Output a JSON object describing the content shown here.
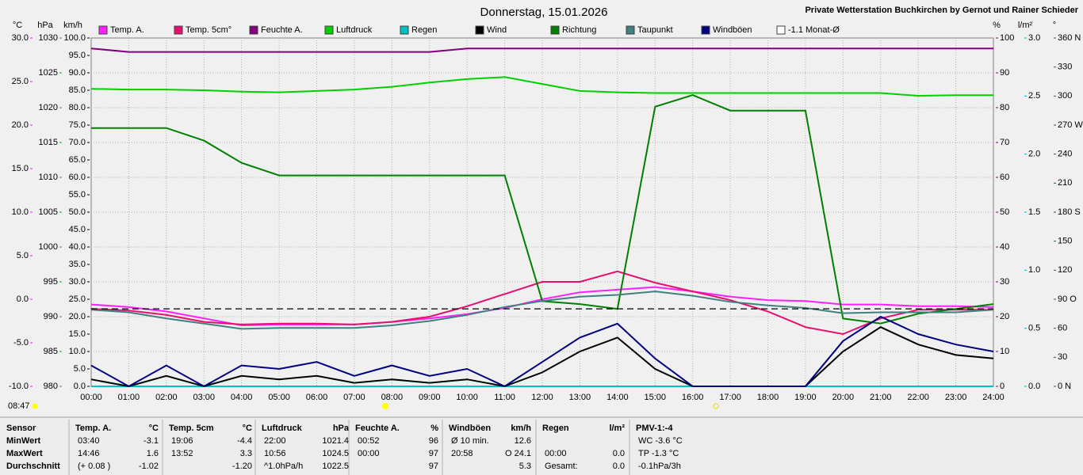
{
  "chart_data": {
    "type": "line",
    "title": "Donnerstag, 15.01.2026",
    "subtitle": "Private Wetterstation Buchkirchen by Gernot und Rainer Schieder",
    "time_label": "08:47",
    "grid": true,
    "x": [
      0,
      1,
      2,
      3,
      4,
      5,
      6,
      7,
      8,
      9,
      10,
      11,
      12,
      13,
      14,
      15,
      16,
      17,
      18,
      19,
      20,
      21,
      22,
      23,
      24
    ],
    "xlim": [
      0,
      24
    ],
    "xticks": [
      {
        "value": 0,
        "label": "00:00"
      },
      {
        "value": 1,
        "label": "01:00"
      },
      {
        "value": 2,
        "label": "02:00"
      },
      {
        "value": 3,
        "label": "03:00"
      },
      {
        "value": 4,
        "label": "04:00"
      },
      {
        "value": 5,
        "label": "05:00"
      },
      {
        "value": 6,
        "label": "06:00"
      },
      {
        "value": 7,
        "label": "07:00"
      },
      {
        "value": 8,
        "label": "08:00"
      },
      {
        "value": 9,
        "label": "09:00"
      },
      {
        "value": 10,
        "label": "10:00"
      },
      {
        "value": 11,
        "label": "11:00"
      },
      {
        "value": 12,
        "label": "12:00"
      },
      {
        "value": 13,
        "label": "13:00"
      },
      {
        "value": 14,
        "label": "14:00"
      },
      {
        "value": 15,
        "label": "15:00"
      },
      {
        "value": 16,
        "label": "16:00"
      },
      {
        "value": 17,
        "label": "17:00"
      },
      {
        "value": 18,
        "label": "18:00"
      },
      {
        "value": 19,
        "label": "19:00"
      },
      {
        "value": 20,
        "label": "20:00"
      },
      {
        "value": 21,
        "label": "21:00"
      },
      {
        "value": 22,
        "label": "22:00"
      },
      {
        "value": 23,
        "label": "23:00"
      },
      {
        "value": 24,
        "label": "24:00"
      }
    ],
    "axes": [
      {
        "unit": "°C",
        "color": "#e020e0",
        "lim": [
          -10,
          30
        ],
        "ticks": [
          {
            "value": -10,
            "label": "-10.0"
          },
          {
            "value": -5,
            "label": "-5.0"
          },
          {
            "value": 0,
            "label": "0.0"
          },
          {
            "value": 5,
            "label": "5.0"
          },
          {
            "value": 10,
            "label": "10.0"
          },
          {
            "value": 15,
            "label": "15.0"
          },
          {
            "value": 20,
            "label": "20.0"
          },
          {
            "value": 25,
            "label": "25.0"
          },
          {
            "value": 30,
            "label": "30.0"
          }
        ]
      },
      {
        "unit": "hPa",
        "color": "#00b000",
        "lim": [
          980,
          1030
        ],
        "ticks": [
          980,
          985,
          990,
          995,
          1000,
          1005,
          1010,
          1015,
          1020,
          1025,
          1030
        ]
      },
      {
        "unit": "km/h",
        "color": "#000000",
        "lim": [
          0,
          100
        ],
        "ticks": [
          {
            "value": 0,
            "label": "0.0"
          },
          {
            "value": 5,
            "label": "5.0"
          },
          {
            "value": 10,
            "label": "10.0"
          },
          {
            "value": 15,
            "label": "15.0"
          },
          {
            "value": 20,
            "label": "20.0"
          },
          {
            "value": 25,
            "label": "25.0"
          },
          {
            "value": 30,
            "label": "30.0"
          },
          {
            "value": 35,
            "label": "35.0"
          },
          {
            "value": 40,
            "label": "40.0"
          },
          {
            "value": 45,
            "label": "45.0"
          },
          {
            "value": 50,
            "label": "50.0"
          },
          {
            "value": 55,
            "label": "55.0"
          },
          {
            "value": 60,
            "label": "60.0"
          },
          {
            "value": 65,
            "label": "65.0"
          },
          {
            "value": 70,
            "label": "70.0"
          },
          {
            "value": 75,
            "label": "75.0"
          },
          {
            "value": 80,
            "label": "80.0"
          },
          {
            "value": 85,
            "label": "85.0"
          },
          {
            "value": 90,
            "label": "90.0"
          },
          {
            "value": 95,
            "label": "95.0"
          },
          {
            "value": 100,
            "label": "100.0"
          }
        ]
      },
      {
        "unit": "%",
        "color": "#800080",
        "lim": [
          0,
          100
        ],
        "ticks": [
          0,
          10,
          20,
          30,
          40,
          50,
          60,
          70,
          80,
          90,
          100
        ]
      },
      {
        "unit": "l/m²",
        "color": "#00b0c0",
        "lim": [
          0,
          3
        ],
        "ticks": [
          {
            "value": 0,
            "label": "0.0"
          },
          {
            "value": 0.5,
            "label": "0.5"
          },
          {
            "value": 1,
            "label": "1.0"
          },
          {
            "value": 1.5,
            "label": "1.5"
          },
          {
            "value": 2,
            "label": "2.0"
          },
          {
            "value": 2.5,
            "label": "2.5"
          },
          {
            "value": 3,
            "label": "3.0"
          }
        ]
      },
      {
        "unit": "°",
        "color": "#008000",
        "lim": [
          0,
          360
        ],
        "ticks": [
          {
            "value": 0,
            "label": "0 N"
          },
          30,
          60,
          {
            "value": 90,
            "label": "90 O"
          },
          120,
          150,
          {
            "value": 180,
            "label": "180 S"
          },
          210,
          240,
          {
            "value": 270,
            "label": "270 W"
          },
          300,
          330,
          {
            "value": 360,
            "label": "360 N"
          }
        ]
      }
    ],
    "series": [
      {
        "name": "Temp. A.",
        "color": "#ff20ff",
        "axis": "°C",
        "values": [
          -0.6,
          -0.9,
          -1.4,
          -2.2,
          -3.0,
          -2.9,
          -2.9,
          -2.9,
          -2.6,
          -2.2,
          -1.7,
          -1.0,
          0.0,
          0.8,
          1.1,
          1.4,
          0.9,
          0.3,
          -0.1,
          -0.2,
          -0.6,
          -0.6,
          -0.8,
          -0.8,
          -0.9
        ]
      },
      {
        "name": "Temp. 5cm°",
        "color": "#e8106e",
        "axis": "°C",
        "values": [
          -1.1,
          -1.3,
          -1.8,
          -2.6,
          -2.9,
          -2.8,
          -2.8,
          -2.9,
          -2.6,
          -2.0,
          -0.8,
          0.6,
          2.0,
          2.0,
          3.2,
          1.9,
          0.9,
          -0.1,
          -1.4,
          -3.2,
          -4.0,
          -2.2,
          -1.2,
          -1.2,
          -1.2
        ]
      },
      {
        "name": "Feuchte A.",
        "color": "#800080",
        "axis": "%",
        "values": [
          97,
          96,
          96,
          96,
          96,
          96,
          96,
          96,
          96,
          96,
          97,
          97,
          97,
          97,
          97,
          97,
          97,
          97,
          97,
          97,
          97,
          97,
          97,
          97,
          97
        ]
      },
      {
        "name": "Luftdruck",
        "color": "#00d000",
        "axis": "hPa",
        "values": [
          1022.7,
          1022.6,
          1022.6,
          1022.5,
          1022.3,
          1022.2,
          1022.4,
          1022.6,
          1023.0,
          1023.6,
          1024.1,
          1024.4,
          1023.4,
          1022.4,
          1022.2,
          1022.1,
          1022.1,
          1022.1,
          1022.1,
          1022.1,
          1022.1,
          1022.1,
          1021.7,
          1021.8,
          1021.8
        ]
      },
      {
        "name": "Regen",
        "color": "#00c0c0",
        "axis": "l/m²",
        "values": [
          0,
          0,
          0,
          0,
          0,
          0,
          0,
          0,
          0,
          0,
          0,
          0,
          0,
          0,
          0,
          0,
          0,
          0,
          0,
          0,
          0,
          0,
          0,
          0,
          0
        ]
      },
      {
        "name": "Wind",
        "color": "#000000",
        "axis": "km/h",
        "values": [
          2,
          0,
          3,
          0,
          3,
          2,
          3,
          1,
          2,
          1,
          2,
          0,
          4,
          10,
          14,
          5,
          0,
          0,
          0,
          0,
          10,
          17,
          12,
          9,
          8
        ]
      },
      {
        "name": "Richtung",
        "color": "#008000",
        "axis": "°",
        "values": [
          267,
          267,
          267,
          254,
          231,
          218,
          218,
          218,
          218,
          218,
          218,
          218,
          88,
          85,
          80,
          289,
          301,
          285,
          285,
          285,
          70,
          65,
          75,
          80,
          85
        ]
      },
      {
        "name": "Taupunkt",
        "color": "#408080",
        "axis": "°C",
        "values": [
          -1.2,
          -1.5,
          -2.2,
          -2.8,
          -3.4,
          -3.3,
          -3.3,
          -3.3,
          -3.0,
          -2.5,
          -1.8,
          -0.9,
          -0.2,
          0.3,
          0.5,
          0.9,
          0.4,
          -0.3,
          -0.7,
          -1.0,
          -1.6,
          -1.5,
          -1.5,
          -1.5,
          -1.2
        ]
      },
      {
        "name": "Windböen",
        "color": "#000080",
        "axis": "km/h",
        "values": [
          6,
          0,
          6,
          0,
          6,
          5,
          7,
          3,
          6,
          3,
          5,
          0,
          7,
          14,
          18,
          8,
          0,
          0,
          0,
          0,
          13,
          20,
          15,
          12,
          10
        ]
      }
    ],
    "reference_line": {
      "name": "-1.1 Monat-Ø",
      "value": -1.1,
      "axis": "°C",
      "color": "#000000"
    }
  },
  "table": {
    "header_label": "Sensor",
    "columns": [
      {
        "title": "Temp. A.",
        "unit": "°C"
      },
      {
        "title": "Temp. 5cm",
        "unit": "°C"
      },
      {
        "title": "Luftdruck",
        "unit": "hPa"
      },
      {
        "title": "Feuchte A.",
        "unit": "%"
      },
      {
        "title": "Windböen",
        "unit": "km/h"
      },
      {
        "title": "Regen",
        "unit": "l/m²"
      },
      {
        "title": "PMV-1:-4"
      }
    ],
    "rows": [
      {
        "label": "MinWert",
        "cells": [
          {
            "left": "03:40",
            "right": "-3.1"
          },
          {
            "left": "19:06",
            "right": "-4.4"
          },
          {
            "left": "22:00",
            "right": "1021.4"
          },
          {
            "left": "00:52",
            "right": "96"
          },
          {
            "left": "Ø 10 min.",
            "right": "12.6"
          },
          {},
          {
            "left": "WC -3.6 °C"
          }
        ]
      },
      {
        "label": "MaxWert",
        "cells": [
          {
            "left": "14:46",
            "right": "1.6"
          },
          {
            "left": "13:52",
            "right": "3.3"
          },
          {
            "left": "10:56",
            "right": "1024.5"
          },
          {
            "left": "00:00",
            "right": "97"
          },
          {
            "left": "20:58",
            "right": "O 24.1"
          },
          {
            "left": "00:00",
            "right": "0.0"
          },
          {
            "left": "TP -1.3 °C"
          }
        ]
      },
      {
        "label": "Durchschnitt",
        "cells": [
          {
            "left": "(+ 0.08 )",
            "right": "-1.02"
          },
          {
            "right": "-1.20"
          },
          {
            "left": "^1.0hPa/h",
            "right": "1022.5"
          },
          {
            "right": "97"
          },
          {
            "right": "5.3"
          },
          {
            "left": "Gesamt:",
            "right": "0.0"
          },
          {
            "left": "-0.1hPa/3h"
          }
        ]
      }
    ]
  }
}
